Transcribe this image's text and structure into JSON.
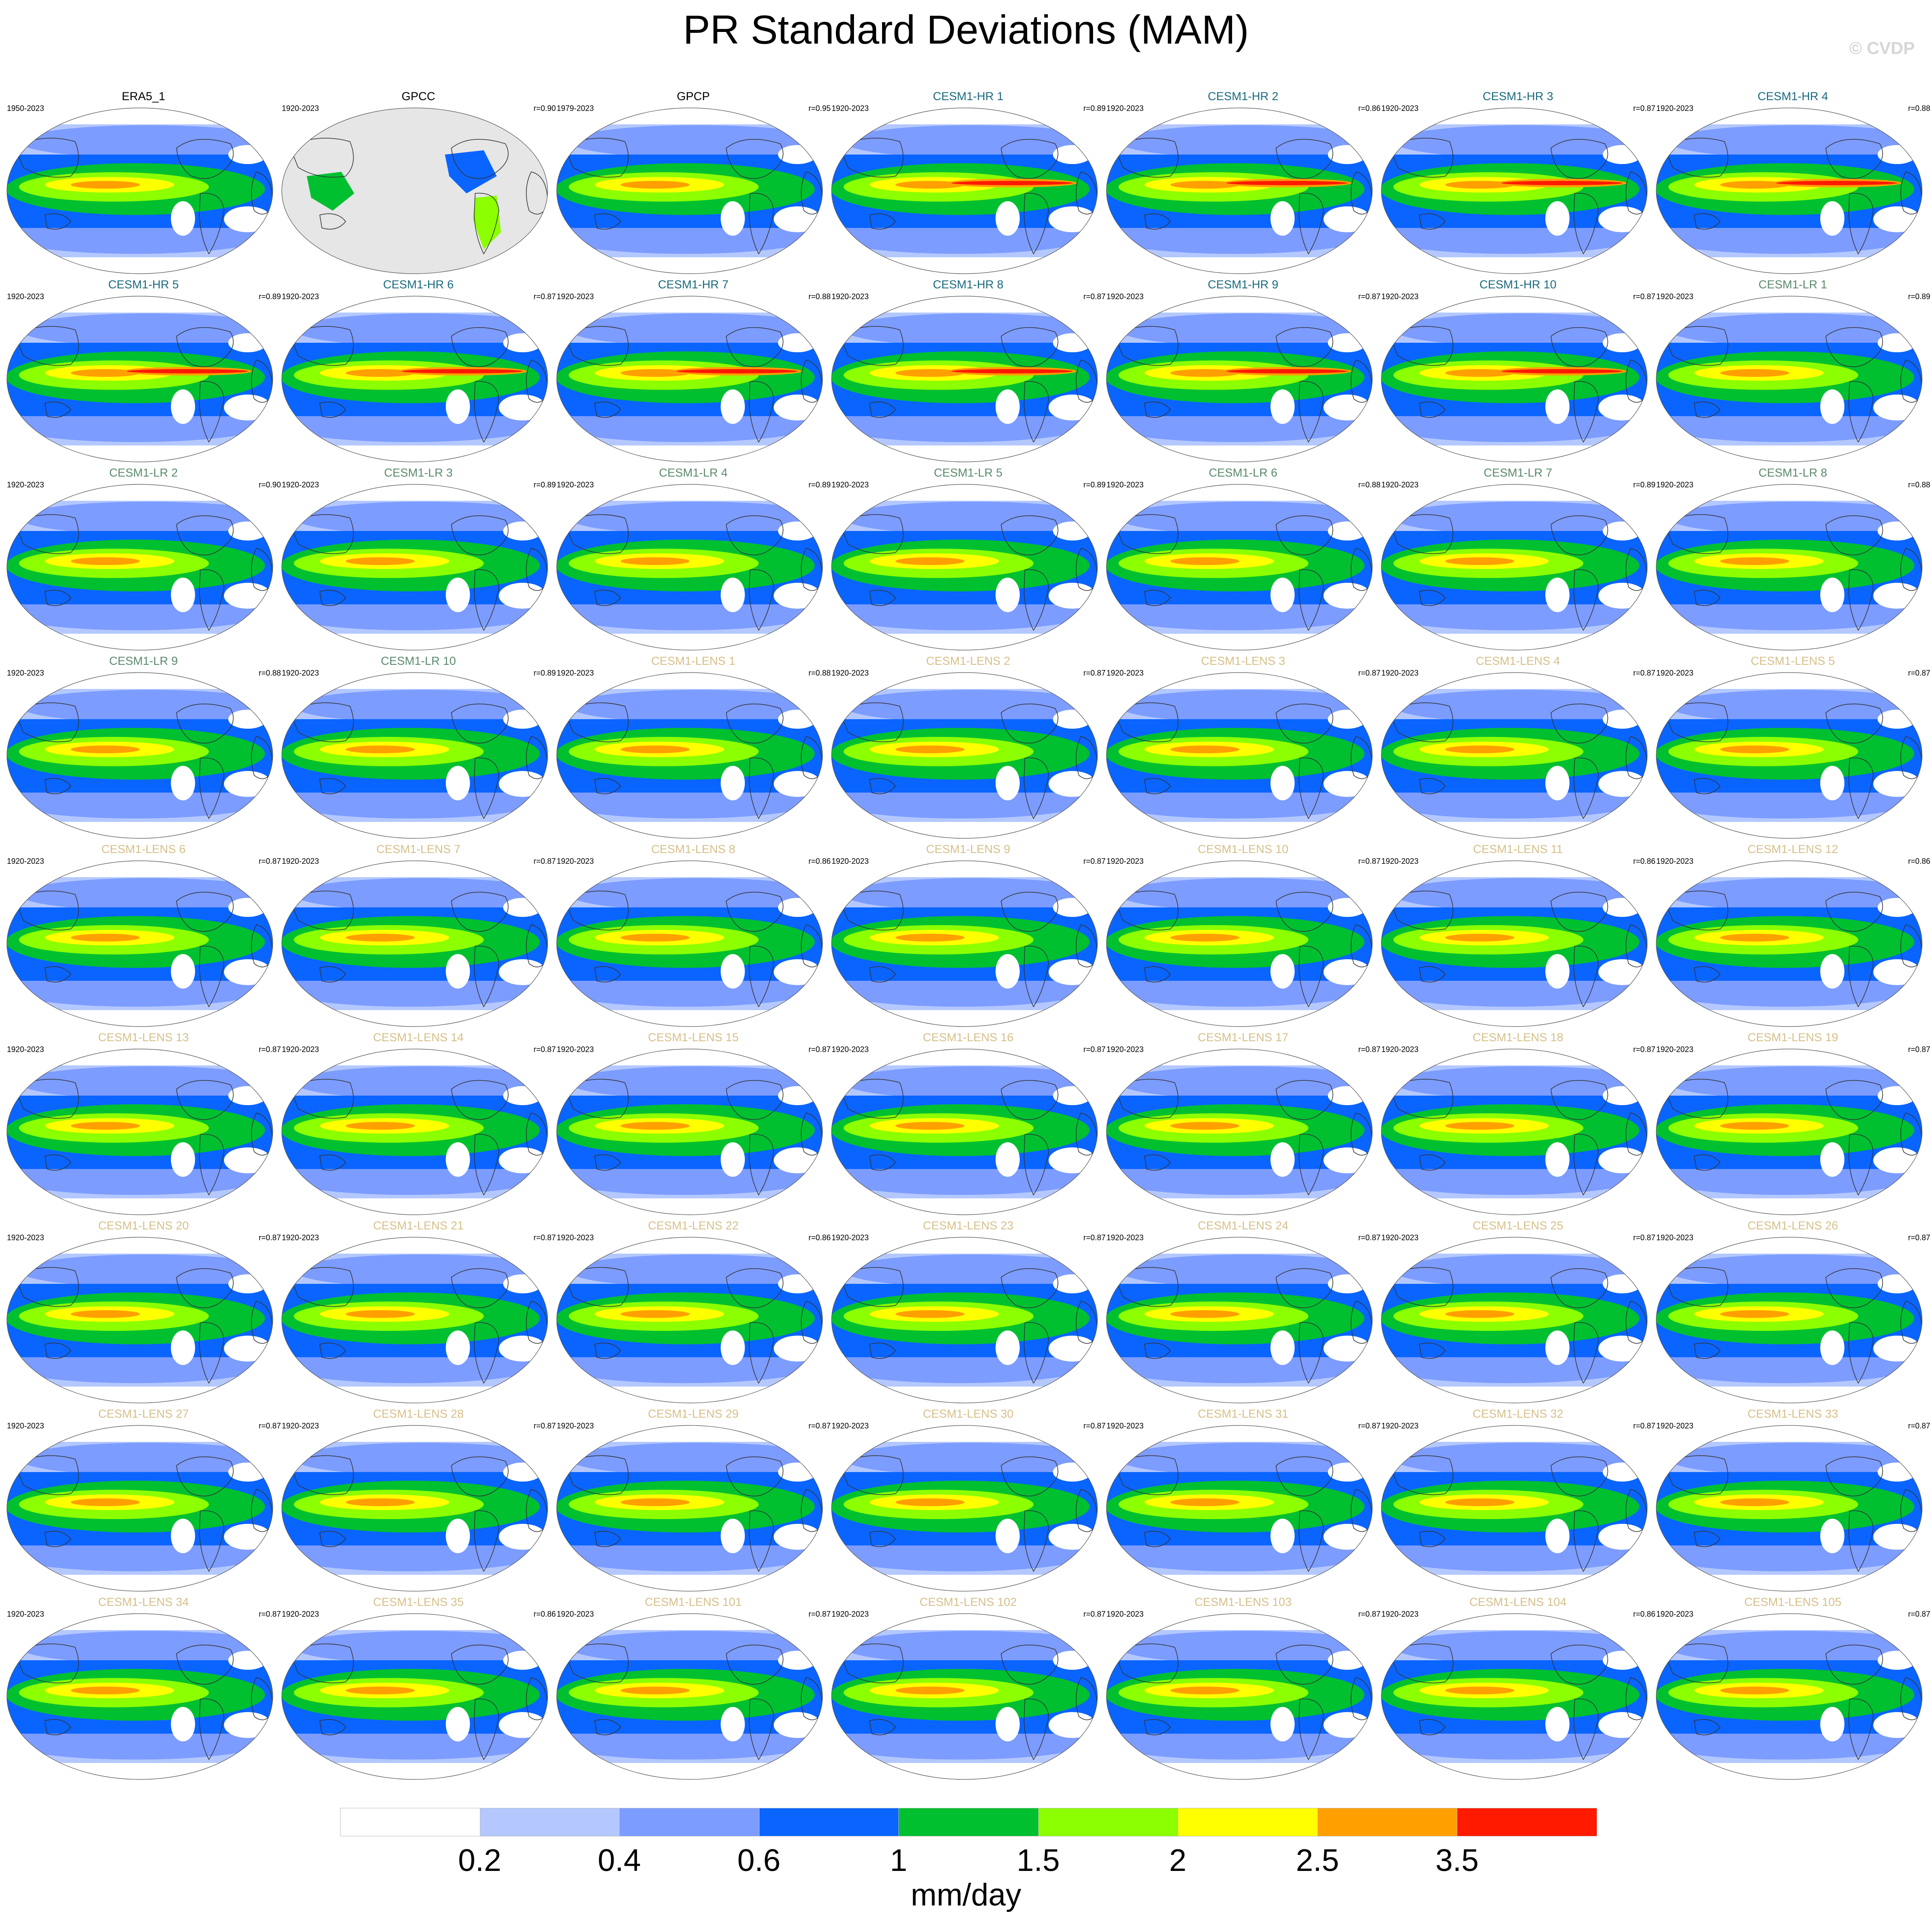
{
  "title": "PR Standard Deviations (MAM)",
  "credit": "© CVDP",
  "units": "mm/day",
  "colors": {
    "obs_title": "#000000",
    "cesm1_hr_title": "#1a6a7e",
    "cesm1_lr_title": "#5b8a6b",
    "cesm1_lens_title": "#d6c08a"
  },
  "colorbar": {
    "colors": [
      "#ffffff",
      "#b4c8ff",
      "#7c9cff",
      "#0a64ff",
      "#00c030",
      "#8cff00",
      "#ffff00",
      "#ffa000",
      "#ff1a00"
    ],
    "ticks": [
      "0.2",
      "0.4",
      "0.6",
      "1",
      "1.5",
      "2",
      "2.5",
      "3.5"
    ]
  },
  "panels": [
    {
      "name": "ERA5_1",
      "years": "1950-2023",
      "r": "",
      "group": "obs"
    },
    {
      "name": "GPCC",
      "years": "1920-2023",
      "r": "r=0.90",
      "group": "obs"
    },
    {
      "name": "GPCP",
      "years": "1979-2023",
      "r": "r=0.95",
      "group": "obs"
    },
    {
      "name": "CESM1-HR 1",
      "years": "1920-2023",
      "r": "r=0.89",
      "group": "hr"
    },
    {
      "name": "CESM1-HR 2",
      "years": "1920-2023",
      "r": "r=0.86",
      "group": "hr"
    },
    {
      "name": "CESM1-HR 3",
      "years": "1920-2023",
      "r": "r=0.87",
      "group": "hr"
    },
    {
      "name": "CESM1-HR 4",
      "years": "1920-2023",
      "r": "r=0.88",
      "group": "hr"
    },
    {
      "name": "CESM1-HR 5",
      "years": "1920-2023",
      "r": "r=0.89",
      "group": "hr"
    },
    {
      "name": "CESM1-HR 6",
      "years": "1920-2023",
      "r": "r=0.87",
      "group": "hr"
    },
    {
      "name": "CESM1-HR 7",
      "years": "1920-2023",
      "r": "r=0.88",
      "group": "hr"
    },
    {
      "name": "CESM1-HR 8",
      "years": "1920-2023",
      "r": "r=0.87",
      "group": "hr"
    },
    {
      "name": "CESM1-HR 9",
      "years": "1920-2023",
      "r": "r=0.87",
      "group": "hr"
    },
    {
      "name": "CESM1-HR 10",
      "years": "1920-2023",
      "r": "r=0.87",
      "group": "hr"
    },
    {
      "name": "CESM1-LR 1",
      "years": "1920-2023",
      "r": "r=0.89",
      "group": "lr"
    },
    {
      "name": "CESM1-LR 2",
      "years": "1920-2023",
      "r": "r=0.90",
      "group": "lr"
    },
    {
      "name": "CESM1-LR 3",
      "years": "1920-2023",
      "r": "r=0.89",
      "group": "lr"
    },
    {
      "name": "CESM1-LR 4",
      "years": "1920-2023",
      "r": "r=0.89",
      "group": "lr"
    },
    {
      "name": "CESM1-LR 5",
      "years": "1920-2023",
      "r": "r=0.89",
      "group": "lr"
    },
    {
      "name": "CESM1-LR 6",
      "years": "1920-2023",
      "r": "r=0.88",
      "group": "lr"
    },
    {
      "name": "CESM1-LR 7",
      "years": "1920-2023",
      "r": "r=0.89",
      "group": "lr"
    },
    {
      "name": "CESM1-LR 8",
      "years": "1920-2023",
      "r": "r=0.88",
      "group": "lr"
    },
    {
      "name": "CESM1-LR 9",
      "years": "1920-2023",
      "r": "r=0.88",
      "group": "lr"
    },
    {
      "name": "CESM1-LR 10",
      "years": "1920-2023",
      "r": "r=0.89",
      "group": "lr"
    },
    {
      "name": "CESM1-LENS 1",
      "years": "1920-2023",
      "r": "r=0.88",
      "group": "lens"
    },
    {
      "name": "CESM1-LENS 2",
      "years": "1920-2023",
      "r": "r=0.87",
      "group": "lens"
    },
    {
      "name": "CESM1-LENS 3",
      "years": "1920-2023",
      "r": "r=0.87",
      "group": "lens"
    },
    {
      "name": "CESM1-LENS 4",
      "years": "1920-2023",
      "r": "r=0.87",
      "group": "lens"
    },
    {
      "name": "CESM1-LENS 5",
      "years": "1920-2023",
      "r": "r=0.87",
      "group": "lens"
    },
    {
      "name": "CESM1-LENS 6",
      "years": "1920-2023",
      "r": "r=0.87",
      "group": "lens"
    },
    {
      "name": "CESM1-LENS 7",
      "years": "1920-2023",
      "r": "r=0.87",
      "group": "lens"
    },
    {
      "name": "CESM1-LENS 8",
      "years": "1920-2023",
      "r": "r=0.86",
      "group": "lens"
    },
    {
      "name": "CESM1-LENS 9",
      "years": "1920-2023",
      "r": "r=0.87",
      "group": "lens"
    },
    {
      "name": "CESM1-LENS 10",
      "years": "1920-2023",
      "r": "r=0.87",
      "group": "lens"
    },
    {
      "name": "CESM1-LENS 11",
      "years": "1920-2023",
      "r": "r=0.86",
      "group": "lens"
    },
    {
      "name": "CESM1-LENS 12",
      "years": "1920-2023",
      "r": "r=0.86",
      "group": "lens"
    },
    {
      "name": "CESM1-LENS 13",
      "years": "1920-2023",
      "r": "r=0.87",
      "group": "lens"
    },
    {
      "name": "CESM1-LENS 14",
      "years": "1920-2023",
      "r": "r=0.87",
      "group": "lens"
    },
    {
      "name": "CESM1-LENS 15",
      "years": "1920-2023",
      "r": "r=0.87",
      "group": "lens"
    },
    {
      "name": "CESM1-LENS 16",
      "years": "1920-2023",
      "r": "r=0.87",
      "group": "lens"
    },
    {
      "name": "CESM1-LENS 17",
      "years": "1920-2023",
      "r": "r=0.87",
      "group": "lens"
    },
    {
      "name": "CESM1-LENS 18",
      "years": "1920-2023",
      "r": "r=0.87",
      "group": "lens"
    },
    {
      "name": "CESM1-LENS 19",
      "years": "1920-2023",
      "r": "r=0.87",
      "group": "lens"
    },
    {
      "name": "CESM1-LENS 20",
      "years": "1920-2023",
      "r": "r=0.87",
      "group": "lens"
    },
    {
      "name": "CESM1-LENS 21",
      "years": "1920-2023",
      "r": "r=0.87",
      "group": "lens"
    },
    {
      "name": "CESM1-LENS 22",
      "years": "1920-2023",
      "r": "r=0.86",
      "group": "lens"
    },
    {
      "name": "CESM1-LENS 23",
      "years": "1920-2023",
      "r": "r=0.87",
      "group": "lens"
    },
    {
      "name": "CESM1-LENS 24",
      "years": "1920-2023",
      "r": "r=0.87",
      "group": "lens"
    },
    {
      "name": "CESM1-LENS 25",
      "years": "1920-2023",
      "r": "r=0.87",
      "group": "lens"
    },
    {
      "name": "CESM1-LENS 26",
      "years": "1920-2023",
      "r": "r=0.87",
      "group": "lens"
    },
    {
      "name": "CESM1-LENS 27",
      "years": "1920-2023",
      "r": "r=0.87",
      "group": "lens"
    },
    {
      "name": "CESM1-LENS 28",
      "years": "1920-2023",
      "r": "r=0.87",
      "group": "lens"
    },
    {
      "name": "CESM1-LENS 29",
      "years": "1920-2023",
      "r": "r=0.87",
      "group": "lens"
    },
    {
      "name": "CESM1-LENS 30",
      "years": "1920-2023",
      "r": "r=0.87",
      "group": "lens"
    },
    {
      "name": "CESM1-LENS 31",
      "years": "1920-2023",
      "r": "r=0.87",
      "group": "lens"
    },
    {
      "name": "CESM1-LENS 32",
      "years": "1920-2023",
      "r": "r=0.87",
      "group": "lens"
    },
    {
      "name": "CESM1-LENS 33",
      "years": "1920-2023",
      "r": "r=0.87",
      "group": "lens"
    },
    {
      "name": "CESM1-LENS 34",
      "years": "1920-2023",
      "r": "r=0.87",
      "group": "lens"
    },
    {
      "name": "CESM1-LENS 35",
      "years": "1920-2023",
      "r": "r=0.86",
      "group": "lens"
    },
    {
      "name": "CESM1-LENS 101",
      "years": "1920-2023",
      "r": "r=0.87",
      "group": "lens"
    },
    {
      "name": "CESM1-LENS 102",
      "years": "1920-2023",
      "r": "r=0.87",
      "group": "lens"
    },
    {
      "name": "CESM1-LENS 103",
      "years": "1920-2023",
      "r": "r=0.87",
      "group": "lens"
    },
    {
      "name": "CESM1-LENS 104",
      "years": "1920-2023",
      "r": "r=0.86",
      "group": "lens"
    },
    {
      "name": "CESM1-LENS 105",
      "years": "1920-2023",
      "r": "r=0.87",
      "group": "lens"
    }
  ]
}
